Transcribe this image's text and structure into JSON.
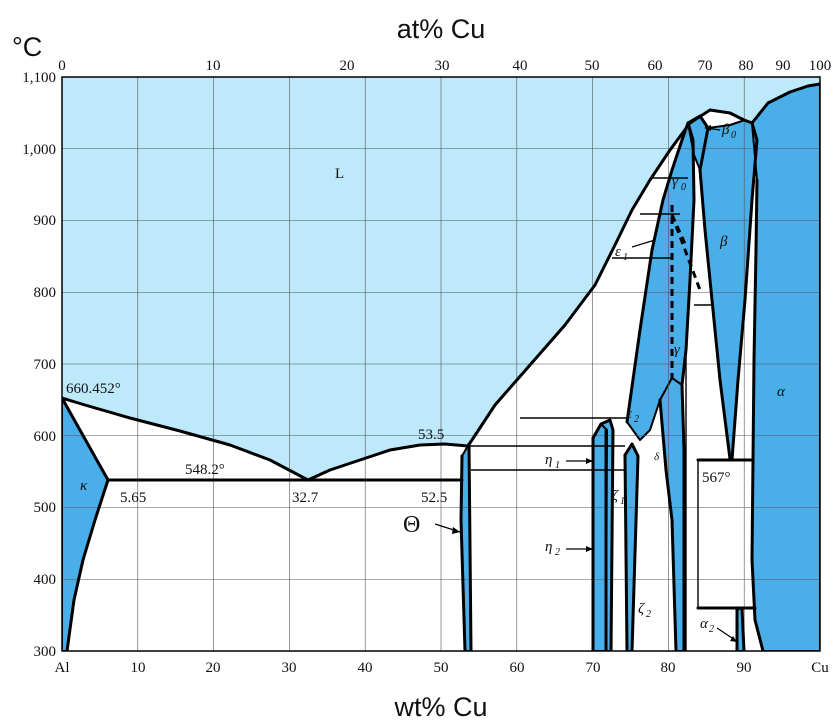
{
  "axes": {
    "top_title": "at% Cu",
    "bottom_title": "wt% Cu",
    "y_unit": "°C",
    "top_ticks": [
      "0",
      "10",
      "20",
      "30",
      "40",
      "50",
      "60",
      "70",
      "80",
      "90",
      "100"
    ],
    "bottom_ticks": [
      "Al",
      "10",
      "20",
      "30",
      "40",
      "50",
      "60",
      "70",
      "80",
      "90",
      "Cu"
    ],
    "y_ticks": [
      "300",
      "400",
      "500",
      "600",
      "700",
      "800",
      "900",
      "1,000",
      "1,100"
    ]
  },
  "annotations": {
    "liquid": "L",
    "al_melting": "660.452°",
    "eutectic_temp": "548.2°",
    "kappa_solubility": "5.65",
    "eutectic_comp": "32.7",
    "theta_liquidus": "53.5",
    "theta_solidus": "52.5",
    "beta_eutectoid": "567°"
  },
  "phases": {
    "kappa": "κ",
    "theta": "Θ",
    "eta": "η",
    "zeta": "ζ",
    "epsilon": "ε",
    "gamma": "γ",
    "beta": "β",
    "alpha": "α",
    "sub_0": "0",
    "sub_1": "1",
    "sub_2": "2"
  },
  "colors": {
    "liquid_region": "#bde9fb",
    "single_phase": "#4aaee8",
    "two_phase": "#ffffff",
    "boundary": "#000000"
  }
}
